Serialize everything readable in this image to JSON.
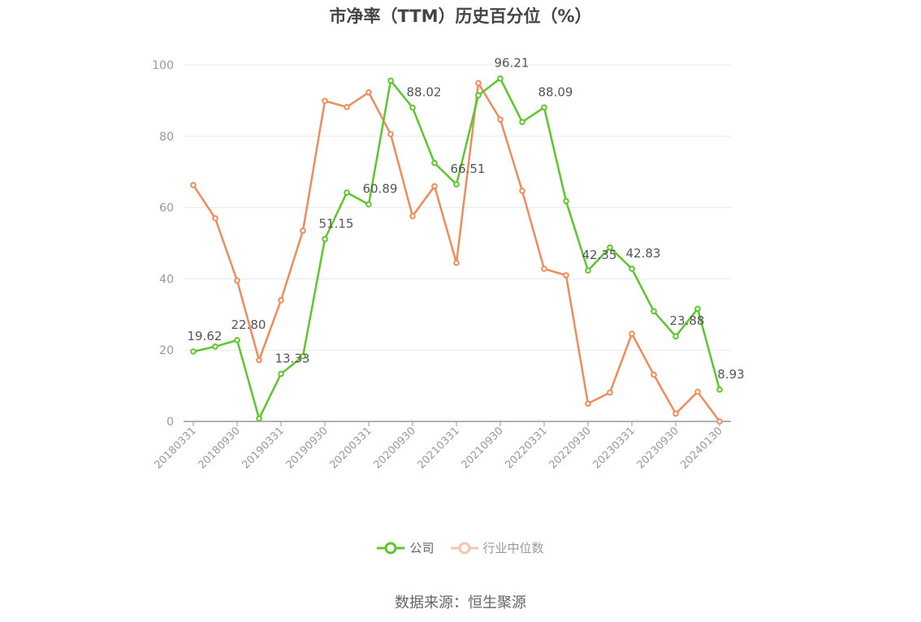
{
  "chart_data": {
    "type": "line",
    "title": "市净率（TTM）历史百分位（%）",
    "source": "数据来源：恒生聚源",
    "ylim": [
      0,
      100
    ],
    "yticks": [
      0,
      20,
      40,
      60,
      80,
      100
    ],
    "xtick_labels": [
      "20180331",
      "20180930",
      "20190331",
      "20190930",
      "20200331",
      "20200930",
      "20210331",
      "20210930",
      "20220331",
      "20220930",
      "20230331",
      "20230930",
      "20240130"
    ],
    "grid": true,
    "legend_position": "bottom",
    "x": [
      "20180331",
      "20180630",
      "20180930",
      "20181231",
      "20190331",
      "20190630",
      "20190930",
      "20191231",
      "20200331",
      "20200630",
      "20200930",
      "20201231",
      "20210331",
      "20210630",
      "20210930",
      "20211231",
      "20220331",
      "20220630",
      "20220930",
      "20221231",
      "20230331",
      "20230630",
      "20230930",
      "20231231",
      "20240130"
    ],
    "series": [
      {
        "name": "公司",
        "color": "#5cc72a",
        "values": [
          19.62,
          21.0,
          22.8,
          0.8,
          13.33,
          18.3,
          51.15,
          64.2,
          60.89,
          95.6,
          88.02,
          72.5,
          66.51,
          91.5,
          96.21,
          84.0,
          88.09,
          61.8,
          42.35,
          48.8,
          42.83,
          30.9,
          23.88,
          31.6,
          8.93
        ],
        "labels": {
          "0": "19.62",
          "2": "22.80",
          "4": "13.33",
          "6": "51.15",
          "8": "60.89",
          "10": "88.02",
          "12": "66.51",
          "14": "96.21",
          "16": "88.09",
          "18": "42.35",
          "20": "42.83",
          "22": "23.88",
          "24": "8.93"
        }
      },
      {
        "name": "行业中位数",
        "color": "#f08c5a",
        "values": [
          66.3,
          57.0,
          39.5,
          17.2,
          34.0,
          53.5,
          89.9,
          88.2,
          92.3,
          80.6,
          57.6,
          66.0,
          44.5,
          94.9,
          84.7,
          64.7,
          42.8,
          41.0,
          5.0,
          8.1,
          24.6,
          13.1,
          2.2,
          8.3,
          0.0
        ]
      }
    ]
  }
}
